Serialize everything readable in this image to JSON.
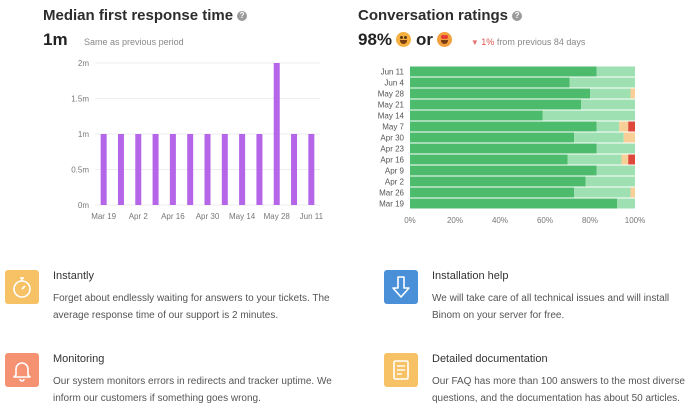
{
  "left": {
    "title": "Median first response time",
    "value": "1m",
    "note": "Same as previous period"
  },
  "right": {
    "title": "Conversation ratings",
    "value": "98%",
    "or_label": "or",
    "trend_pct": "1%",
    "trend_text": "from previous 84 days"
  },
  "chart_data": [
    {
      "type": "bar",
      "categories": [
        "Mar 19",
        "Mar 26",
        "Apr 2",
        "Apr 9",
        "Apr 16",
        "Apr 23",
        "Apr 30",
        "May 7",
        "May 14",
        "May 21",
        "May 28",
        "Jun 4",
        "Jun 11"
      ],
      "x_tick_labels": [
        "Mar 19",
        "Apr 2",
        "Apr 16",
        "Apr 30",
        "May 14",
        "May 28",
        "Jun 11"
      ],
      "values": [
        1,
        1,
        1,
        1,
        1,
        1,
        1,
        1,
        1,
        1,
        2,
        1,
        1
      ],
      "y_ticks": [
        "0m",
        "0.5m",
        "1m",
        "1.5m",
        "2m"
      ],
      "ylim": [
        0,
        2
      ],
      "unit": "minutes",
      "color": "#b565e8",
      "grid": "horizontal"
    },
    {
      "type": "bar",
      "orientation": "horizontal-stacked-percent",
      "categories": [
        "Jun 11",
        "Jun 4",
        "May 28",
        "May 21",
        "May 14",
        "May 7",
        "Apr 30",
        "Apr 23",
        "Apr 16",
        "Apr 9",
        "Apr 2",
        "Mar 26",
        "Mar 19"
      ],
      "x_ticks": [
        "0%",
        "20%",
        "40%",
        "60%",
        "80%",
        "100%"
      ],
      "xlim": [
        0,
        100
      ],
      "series": [
        {
          "color": "#4cbb6c",
          "values": [
            83,
            71,
            80,
            76,
            59,
            83,
            73,
            83,
            70,
            83,
            78,
            73,
            92
          ]
        },
        {
          "color": "#9fe0b2",
          "values": [
            17,
            29,
            18,
            24,
            41,
            10,
            22,
            17,
            24,
            17,
            22,
            25,
            8
          ]
        },
        {
          "color": "#f8cf96",
          "values": [
            0,
            0,
            2,
            0,
            0,
            4,
            5,
            0,
            3,
            0,
            0,
            2,
            0
          ]
        },
        {
          "color": "#e0473b",
          "values": [
            0,
            0,
            0,
            0,
            0,
            3,
            0,
            0,
            3,
            0,
            0,
            0,
            0
          ]
        }
      ]
    }
  ],
  "features": [
    {
      "title": "Instantly",
      "desc": "Forget about endlessly waiting for answers to your tickets. The average response time of our support is 2 minutes.",
      "color": "#f7c266",
      "icon": "stopwatch-icon"
    },
    {
      "title": "Installation help",
      "desc": "We will take care of all technical issues and will install Binom on your server for free.",
      "color": "#4a90d9",
      "icon": "download-arrow-icon"
    },
    {
      "title": "Monitoring",
      "desc": "Our system monitors errors in redirects and tracker uptime. We inform our customers if something goes wrong.",
      "color": "#f49272",
      "icon": "bell-icon"
    },
    {
      "title": "Detailed documentation",
      "desc": "Our FAQ has more than 100 answers to the most diverse questions, and the documentation has about 50 articles.",
      "color": "#f7c266",
      "icon": "document-icon"
    }
  ]
}
